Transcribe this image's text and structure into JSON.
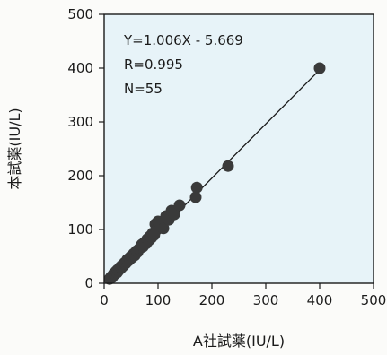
{
  "chart_data": {
    "type": "scatter",
    "xlabel": "A社試薬(IU/L)",
    "ylabel": "本試薬(IU/L)",
    "xlim": [
      0,
      500
    ],
    "ylim": [
      0,
      500
    ],
    "xticks": [
      "0",
      "100",
      "200",
      "300",
      "400",
      "500"
    ],
    "yticks": [
      "0",
      "100",
      "200",
      "300",
      "400",
      "500"
    ],
    "grid": false,
    "background_color": "#e7f3f8",
    "marker_color": "#3a3a3a",
    "line_color": "#1a1a1a",
    "annotations": [
      "Y=1.006X - 5.669",
      "R=0.995",
      "N=55"
    ],
    "regression": {
      "slope": 1.006,
      "intercept": -5.669
    },
    "points": [
      [
        10,
        8
      ],
      [
        13,
        12
      ],
      [
        15,
        11
      ],
      [
        17,
        16
      ],
      [
        18,
        18
      ],
      [
        20,
        17
      ],
      [
        22,
        22
      ],
      [
        24,
        20
      ],
      [
        25,
        25
      ],
      [
        27,
        24
      ],
      [
        28,
        27
      ],
      [
        30,
        30
      ],
      [
        32,
        29
      ],
      [
        33,
        33
      ],
      [
        35,
        32
      ],
      [
        37,
        36
      ],
      [
        38,
        38
      ],
      [
        40,
        37
      ],
      [
        42,
        40
      ],
      [
        43,
        44
      ],
      [
        45,
        42
      ],
      [
        47,
        47
      ],
      [
        48,
        45
      ],
      [
        50,
        50
      ],
      [
        52,
        48
      ],
      [
        55,
        55
      ],
      [
        57,
        52
      ],
      [
        60,
        60
      ],
      [
        62,
        58
      ],
      [
        65,
        64
      ],
      [
        68,
        66
      ],
      [
        70,
        72
      ],
      [
        72,
        68
      ],
      [
        75,
        76
      ],
      [
        78,
        74
      ],
      [
        80,
        82
      ],
      [
        83,
        80
      ],
      [
        85,
        87
      ],
      [
        88,
        85
      ],
      [
        90,
        93
      ],
      [
        93,
        90
      ],
      [
        95,
        110
      ],
      [
        98,
        100
      ],
      [
        100,
        115
      ],
      [
        105,
        110
      ],
      [
        110,
        102
      ],
      [
        115,
        125
      ],
      [
        120,
        118
      ],
      [
        125,
        135
      ],
      [
        130,
        128
      ],
      [
        140,
        145
      ],
      [
        170,
        160
      ],
      [
        172,
        178
      ],
      [
        230,
        218
      ],
      [
        400,
        400
      ]
    ]
  }
}
